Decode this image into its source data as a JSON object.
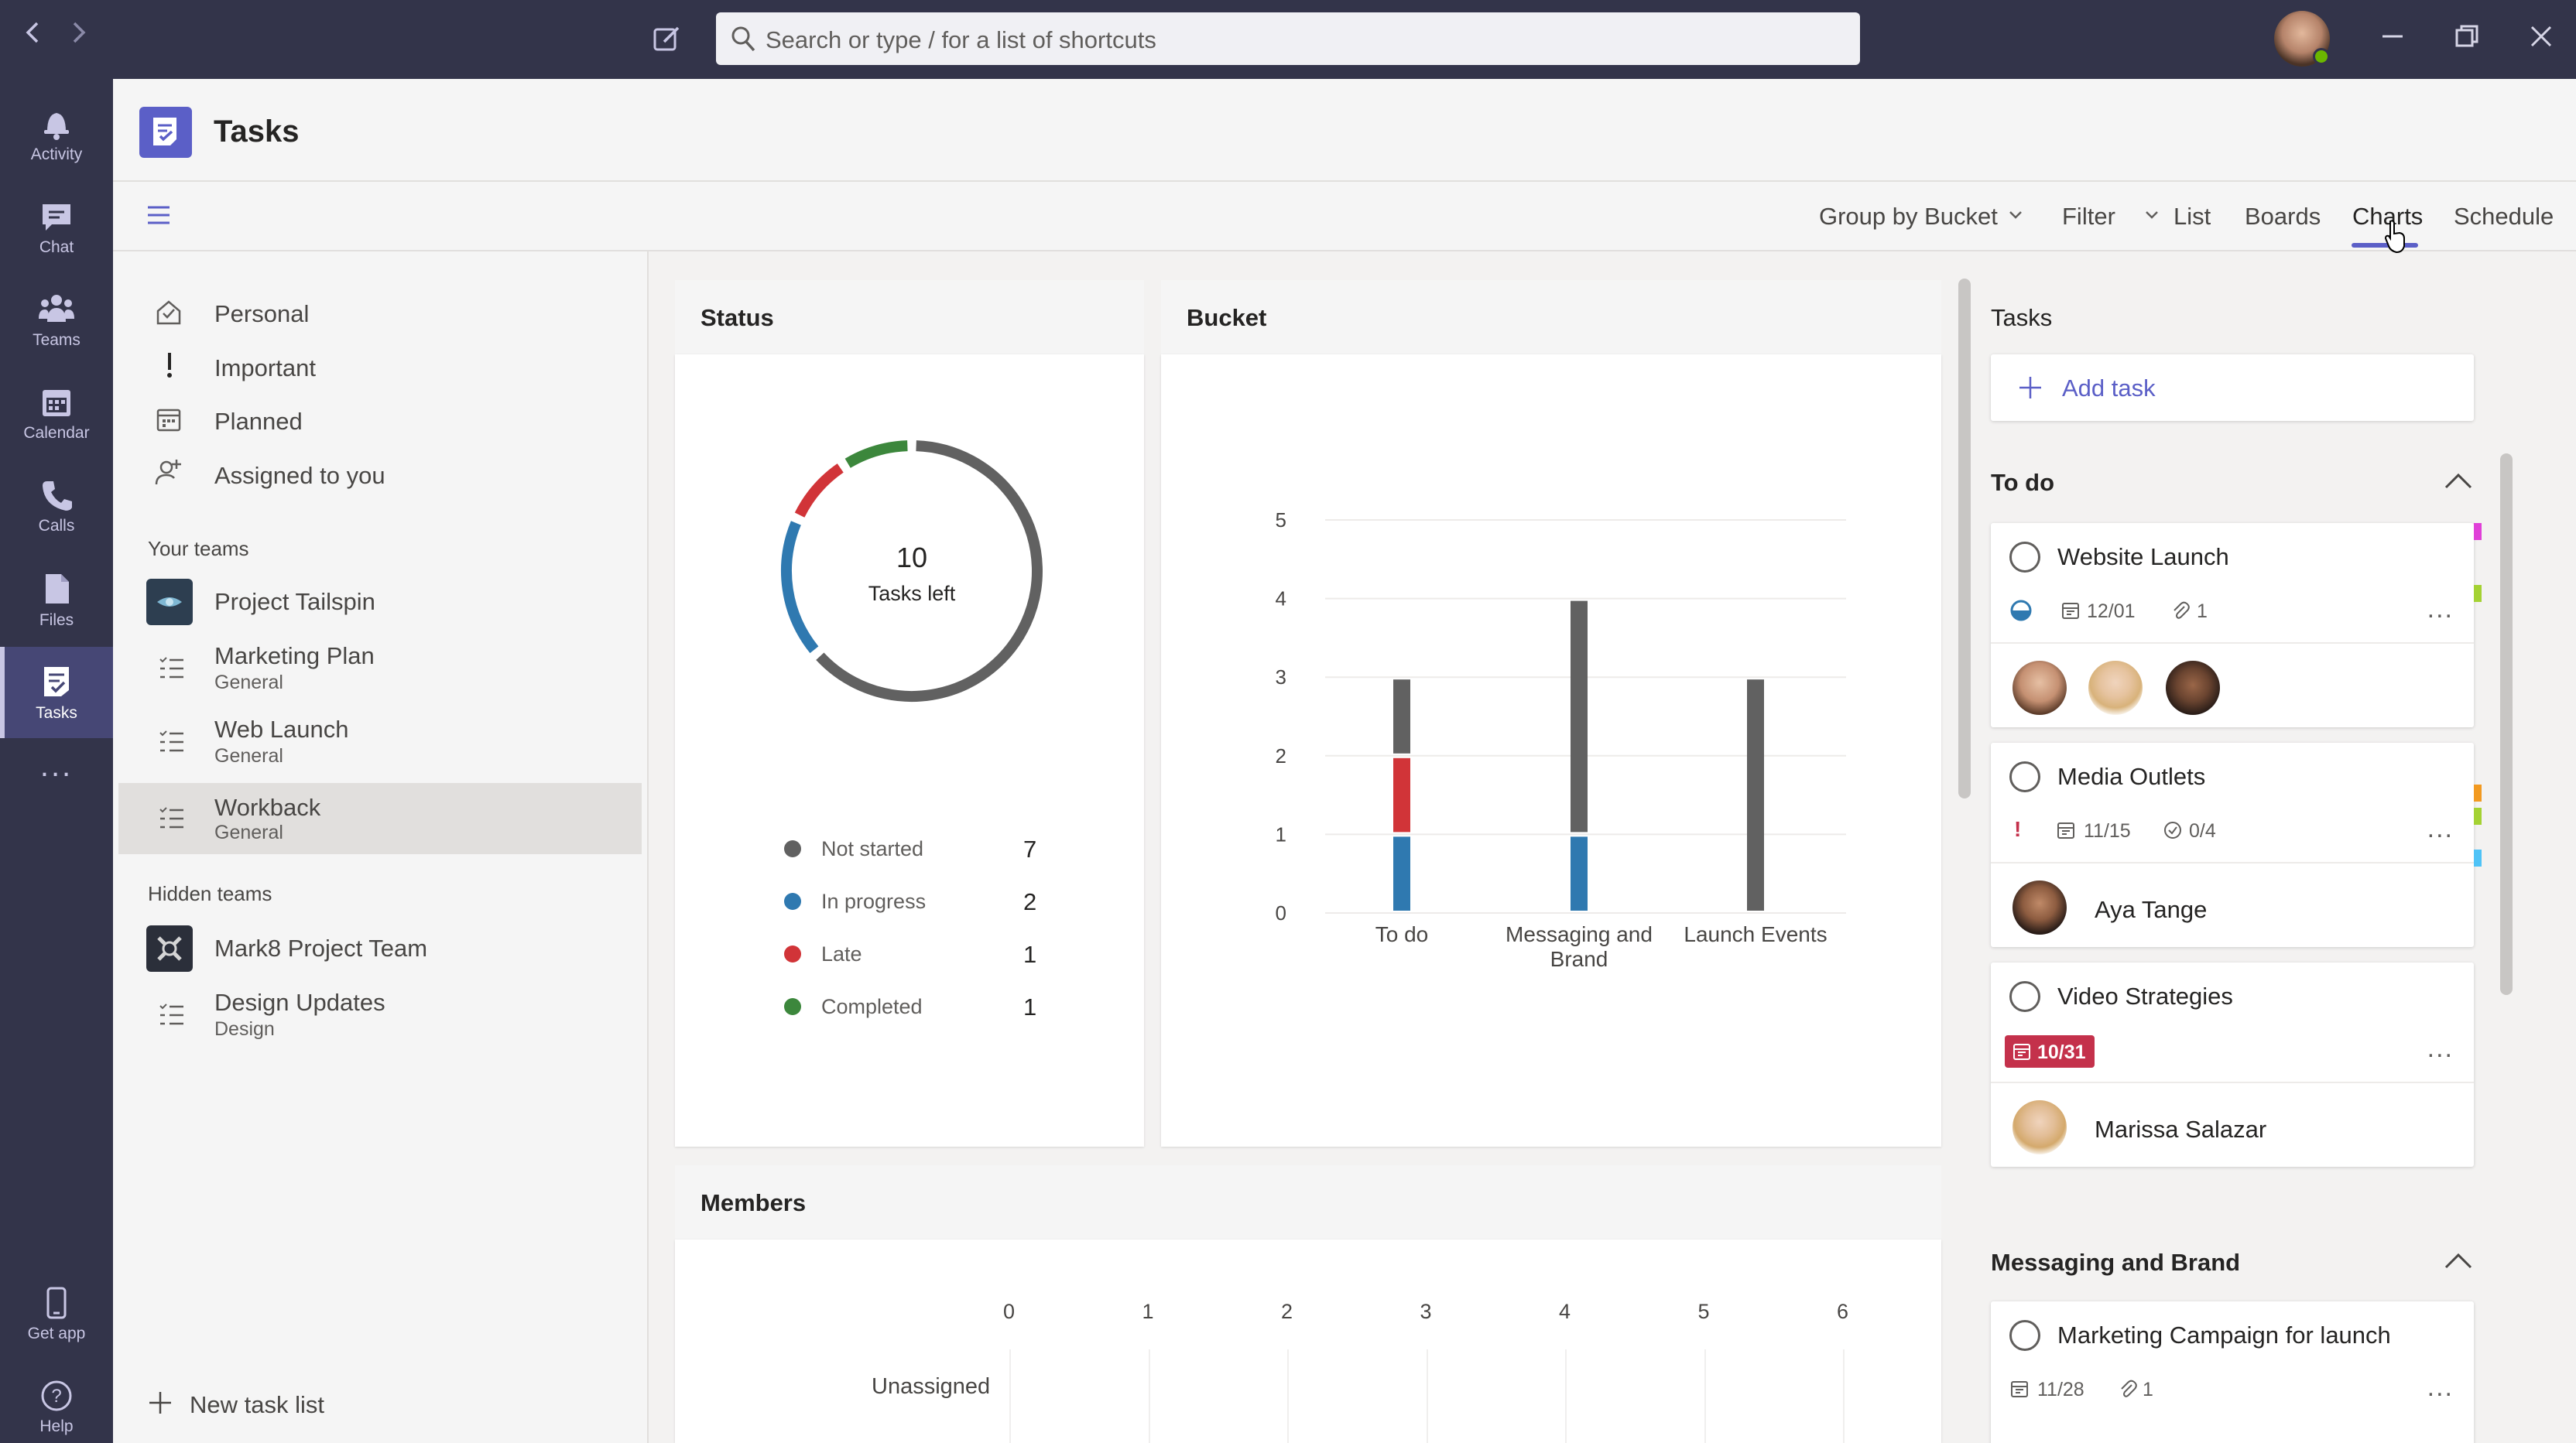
{
  "titlebar": {
    "search_placeholder": "Search or type / for a list of shortcuts"
  },
  "rail": {
    "items": [
      {
        "label": "Activity",
        "icon": "bell-icon"
      },
      {
        "label": "Chat",
        "icon": "chat-icon"
      },
      {
        "label": "Teams",
        "icon": "teams-icon"
      },
      {
        "label": "Calendar",
        "icon": "calendar-icon"
      },
      {
        "label": "Calls",
        "icon": "phone-icon"
      },
      {
        "label": "Files",
        "icon": "files-icon"
      },
      {
        "label": "Tasks",
        "icon": "tasks-icon",
        "active": true
      }
    ],
    "more": "...",
    "get_app": "Get app",
    "help": "Help"
  },
  "header": {
    "title": "Tasks"
  },
  "toolbar": {
    "group_by": "Group by Bucket",
    "filter": "Filter",
    "views": [
      "List",
      "Boards",
      "Charts",
      "Schedule"
    ],
    "active_view": "Charts"
  },
  "sidebar": {
    "personal": [
      "Personal",
      "Important",
      "Planned",
      "Assigned to you"
    ],
    "your_teams_label": "Your teams",
    "your_teams": [
      {
        "name": "Project Tailspin",
        "sub": ""
      },
      {
        "name": "Marketing Plan",
        "sub": "General"
      },
      {
        "name": "Web Launch",
        "sub": "General"
      },
      {
        "name": "Workback",
        "sub": "General",
        "selected": true
      }
    ],
    "hidden_teams_label": "Hidden teams",
    "hidden_teams": [
      {
        "name": "Mark8 Project Team",
        "sub": ""
      },
      {
        "name": "Design Updates",
        "sub": "Design"
      }
    ],
    "new_task_list": "New task list"
  },
  "status_card": {
    "title": "Status",
    "center_number": "10",
    "center_label": "Tasks left",
    "legend": [
      {
        "label": "Not started",
        "value": "7",
        "color": "#616161"
      },
      {
        "label": "In progress",
        "value": "2",
        "color": "#2f79b0"
      },
      {
        "label": "Late",
        "value": "1",
        "color": "#d13438"
      },
      {
        "label": "Completed",
        "value": "1",
        "color": "#3c873c"
      }
    ]
  },
  "chart_data": [
    {
      "type": "pie",
      "title": "Status",
      "categories": [
        "Not started",
        "In progress",
        "Late",
        "Completed"
      ],
      "values": [
        7,
        2,
        1,
        1
      ],
      "colors": [
        "#616161",
        "#2f79b0",
        "#d13438",
        "#3c873c"
      ]
    },
    {
      "type": "bar",
      "title": "Bucket",
      "categories": [
        "To do",
        "Messaging and Brand",
        "Launch Events"
      ],
      "series": [
        {
          "name": "In progress",
          "values": [
            1,
            1,
            0
          ],
          "color": "#2f79b0"
        },
        {
          "name": "Late",
          "values": [
            1,
            0,
            0
          ],
          "color": "#d13438"
        },
        {
          "name": "Not started",
          "values": [
            1,
            3,
            3
          ],
          "color": "#616161"
        }
      ],
      "ylim": [
        0,
        5
      ],
      "yticks": [
        "0",
        "1",
        "2",
        "3",
        "4",
        "5"
      ]
    },
    {
      "type": "bar",
      "title": "Members",
      "categories": [
        "Unassigned"
      ],
      "xticks": [
        "0",
        "1",
        "2",
        "3",
        "4",
        "5",
        "6"
      ],
      "xlim": [
        0,
        6
      ]
    }
  ],
  "bucket_card": {
    "title": "Bucket"
  },
  "members_card": {
    "title": "Members",
    "row_label": "Unassigned"
  },
  "tasks_pane": {
    "title": "Tasks",
    "add_task": "Add task",
    "groups": [
      {
        "name": "To do"
      },
      {
        "name": "Messaging and Brand"
      }
    ],
    "tasks": [
      {
        "title": "Website Launch",
        "due": "12/01",
        "attachments": "1",
        "more": "..."
      },
      {
        "title": "Media Outlets",
        "due": "11/15",
        "checklist": "0/4",
        "assignee": "Aya Tange",
        "more": "..."
      },
      {
        "title": "Video Strategies",
        "due": "10/31",
        "assignee": "Marissa Salazar",
        "more": "..."
      },
      {
        "title": "Marketing Campaign for launch",
        "due": "11/28",
        "attachments": "1",
        "more": "..."
      }
    ],
    "important_marker": "!"
  }
}
